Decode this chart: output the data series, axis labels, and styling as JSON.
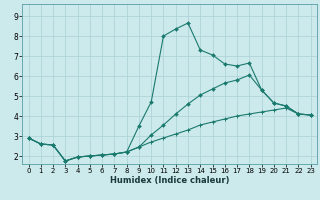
{
  "xlabel": "Humidex (Indice chaleur)",
  "bg_color": "#cce9ec",
  "grid_color": "#aad0d6",
  "line_color": "#1a7a6e",
  "xlim": [
    -0.5,
    23.5
  ],
  "ylim": [
    1.6,
    9.6
  ],
  "xticks": [
    0,
    1,
    2,
    3,
    4,
    5,
    6,
    7,
    8,
    9,
    10,
    11,
    12,
    13,
    14,
    15,
    16,
    17,
    18,
    19,
    20,
    21,
    22,
    23
  ],
  "yticks": [
    2,
    3,
    4,
    5,
    6,
    7,
    8,
    9
  ],
  "line1_x": [
    0,
    1,
    2,
    3,
    4,
    5,
    6,
    7,
    8,
    9,
    10,
    11,
    12,
    13,
    14,
    15,
    16,
    17,
    18,
    19,
    20,
    21,
    22,
    23
  ],
  "line1_y": [
    2.9,
    2.6,
    2.55,
    1.75,
    1.95,
    2.0,
    2.05,
    2.1,
    2.2,
    3.5,
    4.7,
    8.0,
    8.35,
    8.65,
    7.3,
    7.05,
    6.6,
    6.5,
    6.65,
    5.3,
    4.65,
    4.5,
    4.1,
    4.05
  ],
  "line2_x": [
    0,
    1,
    2,
    3,
    4,
    5,
    6,
    7,
    8,
    9,
    10,
    11,
    12,
    13,
    14,
    15,
    16,
    17,
    18,
    19,
    20,
    21,
    22,
    23
  ],
  "line2_y": [
    2.9,
    2.6,
    2.55,
    1.75,
    1.95,
    2.0,
    2.05,
    2.1,
    2.2,
    2.45,
    3.05,
    3.55,
    4.1,
    4.6,
    5.05,
    5.35,
    5.65,
    5.8,
    6.05,
    5.3,
    4.65,
    4.5,
    4.1,
    4.05
  ],
  "line3_x": [
    0,
    1,
    2,
    3,
    4,
    5,
    6,
    7,
    8,
    9,
    10,
    11,
    12,
    13,
    14,
    15,
    16,
    17,
    18,
    19,
    20,
    21,
    22,
    23
  ],
  "line3_y": [
    2.9,
    2.6,
    2.55,
    1.75,
    1.95,
    2.0,
    2.05,
    2.1,
    2.2,
    2.45,
    2.7,
    2.9,
    3.1,
    3.3,
    3.55,
    3.7,
    3.85,
    4.0,
    4.1,
    4.2,
    4.3,
    4.4,
    4.1,
    4.05
  ]
}
